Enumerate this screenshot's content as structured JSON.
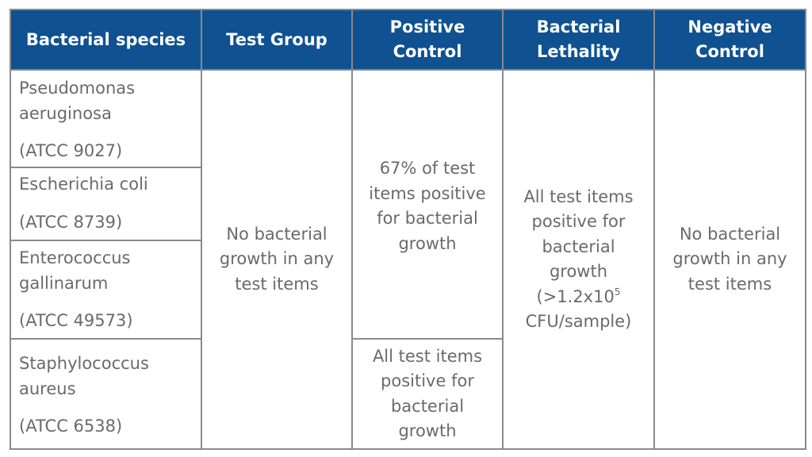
{
  "header": {
    "col1": "Bacterial species",
    "col2": "Test Group",
    "col3_line1": "Positive",
    "col3_line2": "Control",
    "col4_line1": "Bacterial",
    "col4_line2": "Lethality",
    "col5_line1": "Negative",
    "col5_line2": "Control"
  },
  "species": [
    {
      "name_line1": "Pseudomonas",
      "name_line2": "aeruginosa",
      "atcc": "(ATCC 9027)"
    },
    {
      "name_line1": "Escherichia coli",
      "name_line2": "",
      "atcc": "(ATCC 8739)"
    },
    {
      "name_line1": "Enterococcus",
      "name_line2": "gallinarum",
      "atcc": "(ATCC 49573)"
    },
    {
      "name_line1": "Staphylococcus",
      "name_line2": "aureus",
      "atcc": "(ATCC 6538)"
    }
  ],
  "test_group": {
    "line1": "No bacterial",
    "line2": "growth in any",
    "line3": "test items"
  },
  "positive_control_top": {
    "line1": "67% of test",
    "line2": "items positive",
    "line3": "for bacterial",
    "line4": "growth"
  },
  "positive_control_bottom": {
    "line1": "All test items",
    "line2": "positive for",
    "line3": "bacterial",
    "line4": "growth"
  },
  "bacterial_lethality": {
    "line1": "All test items",
    "line2": "positive for",
    "line3": "bacterial",
    "line4": "growth",
    "line5_pre": "(>1.2x10",
    "line5_sup": "5",
    "line6": "CFU/sample)"
  },
  "negative_control": {
    "line1": "No bacterial",
    "line2": "growth in any",
    "line3": "test items"
  }
}
